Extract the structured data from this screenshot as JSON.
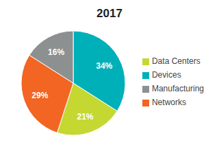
{
  "chart_data": {
    "type": "pie",
    "title": "2017",
    "categories": [
      "Devices",
      "Data Centers",
      "Networks",
      "Manufacturing"
    ],
    "values": [
      34,
      21,
      29,
      16
    ],
    "value_labels": [
      "34%",
      "21%",
      "29%",
      "16%"
    ],
    "colors": [
      "#00b0b9",
      "#c5d832",
      "#f26522",
      "#8c9090"
    ],
    "data_labels": true,
    "legend": "right"
  }
}
